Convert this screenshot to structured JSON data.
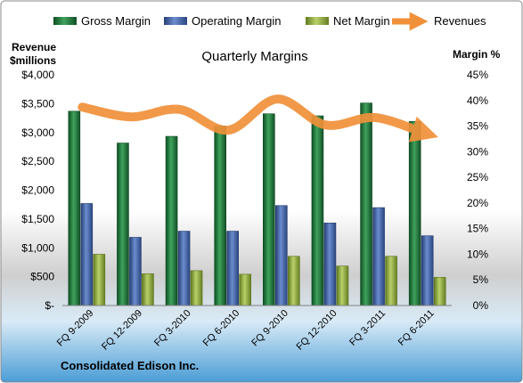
{
  "chart_data": {
    "type": "bar",
    "title": "Quarterly Margins",
    "left_axis_label": [
      "Revenue",
      "$millions"
    ],
    "right_axis_label": "Margin %",
    "footer": "Consolidated Edison Inc.",
    "categories": [
      "FQ 9-2009",
      "FQ 12-2009",
      "FQ 3-2010",
      "FQ 6-2010",
      "FQ 9-2010",
      "FQ 12-2010",
      "FQ 3-2011",
      "FQ 6-2011"
    ],
    "series": [
      {
        "name": "Gross Margin",
        "axis": "right",
        "color": "#1f7a3c",
        "values": [
          37.9,
          31.7,
          33.0,
          35.0,
          37.4,
          37.0,
          39.5,
          35.9
        ]
      },
      {
        "name": "Operating Margin",
        "axis": "right",
        "color": "#3f62a8",
        "values": [
          19.9,
          13.3,
          14.5,
          14.5,
          19.5,
          16.1,
          19.1,
          13.6
        ]
      },
      {
        "name": "Net Margin",
        "axis": "right",
        "color": "#8fae3c",
        "values": [
          10.0,
          6.2,
          6.8,
          6.1,
          9.6,
          7.7,
          9.6,
          5.5
        ]
      },
      {
        "name": "Revenues",
        "axis": "left",
        "type": "line",
        "color": "#f0913a",
        "values": [
          3440,
          3270,
          3400,
          3040,
          3580,
          3130,
          3260,
          3000
        ]
      }
    ],
    "left_ticks": [
      "$-",
      "$500",
      "$1,000",
      "$1,500",
      "$2,000",
      "$2,500",
      "$3,000",
      "$3,500",
      "$4,000"
    ],
    "right_ticks": [
      "0%",
      "5%",
      "10%",
      "15%",
      "20%",
      "25%",
      "30%",
      "35%",
      "40%",
      "45%"
    ],
    "ylim_left": [
      0,
      4000
    ],
    "ylim_right": [
      0,
      45
    ],
    "grid": false,
    "legend_position": "top"
  }
}
